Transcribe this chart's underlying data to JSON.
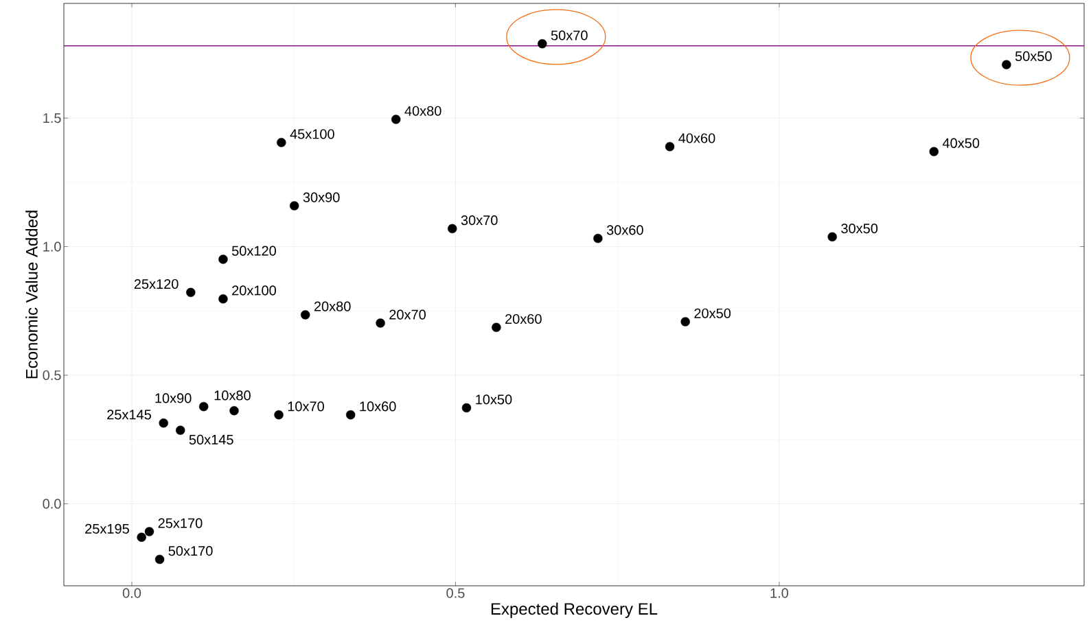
{
  "chart_data": {
    "type": "scatter",
    "xlabel": "Expected Recovery EL",
    "ylabel": "Economic Value Added",
    "xlim": [
      -0.105,
      1.471
    ],
    "ylim": [
      -0.319,
      1.946
    ],
    "xticks": [
      {
        "value": 0,
        "label": "0.0"
      },
      {
        "value": 0.5,
        "label": "0.5"
      },
      {
        "value": 1,
        "label": "1.0"
      }
    ],
    "yticks": [
      {
        "value": 0,
        "label": "0.0"
      },
      {
        "value": 0.5,
        "label": "0.5"
      },
      {
        "value": 1,
        "label": "1.0"
      },
      {
        "value": 1.5,
        "label": "1.5"
      }
    ],
    "grid": true,
    "ref_lines": [
      {
        "axis": "y",
        "value": 1.781,
        "color": "#8e108e"
      }
    ],
    "series": [
      {
        "color": "#000000",
        "x": [
          0.408,
          0.231,
          0.831,
          1.239,
          0.251,
          0.495,
          0.72,
          1.082,
          0.141,
          0.141,
          0.268,
          0.384,
          0.563,
          0.855,
          0.111,
          0.158,
          0.227,
          0.338,
          0.517,
          0.075,
          0.027,
          0.043
        ],
        "values": [
          1.495,
          1.405,
          1.389,
          1.37,
          1.159,
          1.07,
          1.032,
          1.038,
          0.951,
          0.797,
          0.735,
          0.703,
          0.686,
          0.708,
          0.378,
          0.362,
          0.346,
          0.346,
          0.373,
          0.286,
          -0.108,
          -0.216
        ],
        "value_labels": [
          "40x80",
          "45x100",
          "40x60",
          "40x50",
          "30x90",
          "30x70",
          "30x60",
          "30x50",
          "50x120",
          "20x100",
          "20x80",
          "20x70",
          "20x60",
          "20x50",
          "10x90",
          "10x80",
          "10x70",
          "10x60",
          "10x50",
          "50x145",
          "25x170",
          "50x170"
        ]
      },
      {
        "color": "#000000",
        "x": [
          0.634,
          1.351
        ],
        "values": [
          1.789,
          1.708
        ],
        "value_labels": [
          "50x70",
          "50x50"
        ]
      },
      {
        "color": "#000000",
        "x": [
          0.091,
          0.049,
          0.015
        ],
        "values": [
          0.822,
          0.314,
          -0.13
        ],
        "value_labels": [
          "25x120",
          "25x145",
          "25x195"
        ]
      }
    ]
  }
}
